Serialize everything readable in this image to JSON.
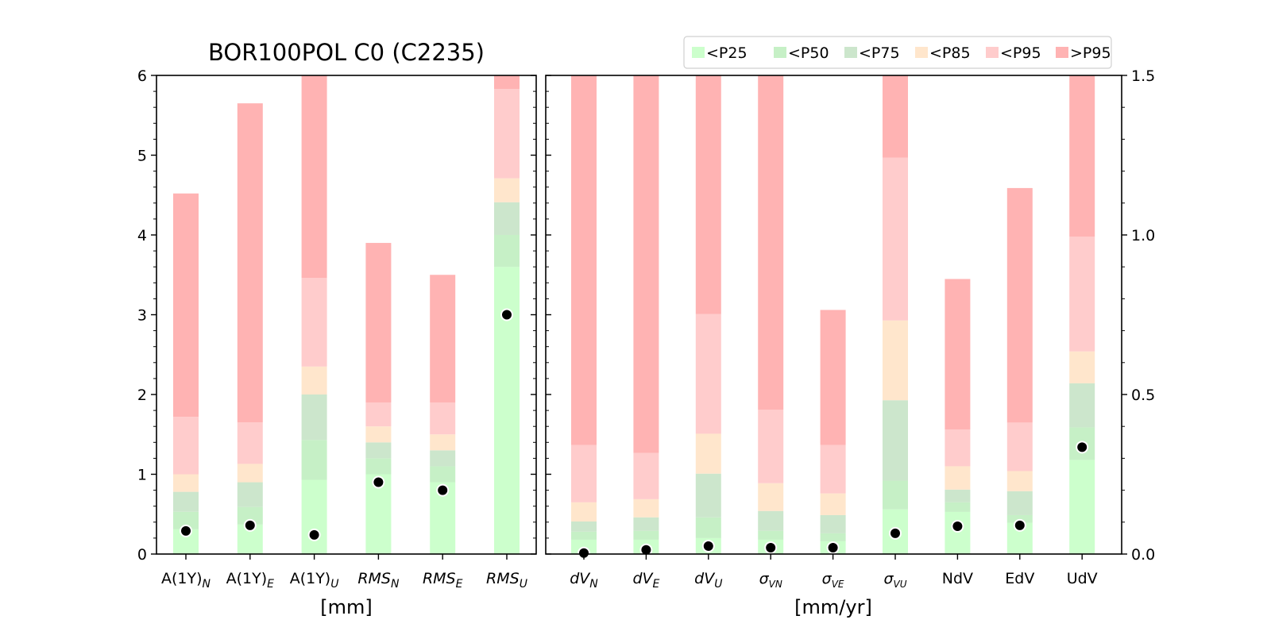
{
  "chart_data": {
    "type": "bar",
    "stacked": true,
    "title": "BOR100POL C0 (C2235)",
    "legend": {
      "placement": "top-right",
      "entries": [
        {
          "label": "<P25",
          "color": "#ccffcc"
        },
        {
          "label": "<P50",
          "color": "#c6f0c6"
        },
        {
          "label": "<P75",
          "color": "#cce6cc"
        },
        {
          "label": "<P85",
          "color": "#ffe6cc"
        },
        {
          "label": "<P95",
          "color": "#ffcccc"
        },
        {
          "label": ">P95",
          "color": "#ffb3b3"
        }
      ]
    },
    "left_panel": {
      "unit_label": "[mm]",
      "ylim": [
        0,
        6
      ],
      "yticks": [
        "0",
        "1",
        "2",
        "3",
        "4",
        "5",
        "6"
      ],
      "categories": [
        {
          "base": "A(1Y)",
          "sub": "N",
          "italic_base": false
        },
        {
          "base": "A(1Y)",
          "sub": "E",
          "italic_base": false
        },
        {
          "base": "A(1Y)",
          "sub": "U",
          "italic_base": false
        },
        {
          "base": "RMS",
          "sub": "N",
          "italic_base": true
        },
        {
          "base": "RMS",
          "sub": "E",
          "italic_base": true
        },
        {
          "base": "RMS",
          "sub": "U",
          "italic_base": true
        }
      ],
      "percentile_bounds": [
        [
          0.31,
          0.53,
          0.78,
          1.0,
          1.72,
          4.52
        ],
        [
          0.37,
          0.59,
          0.9,
          1.13,
          1.65,
          5.65
        ],
        [
          0.93,
          1.43,
          2.0,
          2.35,
          3.46,
          6.0
        ],
        [
          1.0,
          1.2,
          1.4,
          1.6,
          1.9,
          3.9
        ],
        [
          0.9,
          1.1,
          1.3,
          1.5,
          1.9,
          3.5
        ],
        [
          3.6,
          4.0,
          4.41,
          4.71,
          5.83,
          6.0
        ]
      ],
      "station_values": [
        0.29,
        0.36,
        0.24,
        0.9,
        0.8,
        3.0
      ]
    },
    "right_panel": {
      "unit_label": "[mm/yr]",
      "ylim": [
        0,
        1.5
      ],
      "yticks": [
        "0.0",
        "0.5",
        "1.0",
        "1.5"
      ],
      "categories": [
        {
          "base": "dV",
          "sub": "N",
          "italic_base": true
        },
        {
          "base": "dV",
          "sub": "E",
          "italic_base": true
        },
        {
          "base": "dV",
          "sub": "U",
          "italic_base": true
        },
        {
          "base": "σ",
          "sub": "VN",
          "italic_base": true
        },
        {
          "base": "σ",
          "sub": "VE",
          "italic_base": true
        },
        {
          "base": "σ",
          "sub": "VU",
          "italic_base": true
        },
        {
          "base": "NdV",
          "sub": "",
          "italic_base": false
        },
        {
          "base": "EdV",
          "sub": "",
          "italic_base": false
        },
        {
          "base": "UdV",
          "sub": "",
          "italic_base": false
        }
      ],
      "percentile_bounds": [
        [
          0.045,
          0.07,
          0.102,
          0.162,
          0.342,
          1.5
        ],
        [
          0.045,
          0.073,
          0.115,
          0.172,
          0.317,
          1.5
        ],
        [
          0.05,
          0.115,
          0.252,
          0.377,
          0.752,
          1.5
        ],
        [
          0.045,
          0.073,
          0.135,
          0.222,
          0.452,
          1.5
        ],
        [
          0.04,
          0.065,
          0.122,
          0.19,
          0.342,
          0.765
        ],
        [
          0.14,
          0.23,
          0.482,
          0.732,
          1.242,
          1.5
        ],
        [
          0.132,
          0.162,
          0.202,
          0.275,
          0.39,
          0.862
        ],
        [
          0.098,
          0.122,
          0.197,
          0.26,
          0.412,
          1.147
        ],
        [
          0.295,
          0.397,
          0.535,
          0.635,
          0.995,
          1.5
        ]
      ],
      "station_values": [
        0.003,
        0.013,
        0.025,
        0.02,
        0.02,
        0.065,
        0.087,
        0.09,
        0.335
      ]
    }
  }
}
